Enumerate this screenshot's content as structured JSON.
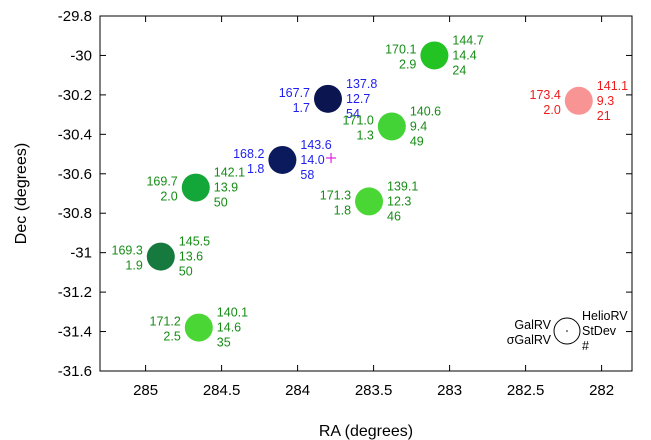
{
  "chart_data": {
    "type": "scatter",
    "xlabel": "RA (degrees)",
    "ylabel": "Dec (degrees)",
    "xlim": [
      285.3,
      281.8
    ],
    "ylim": [
      -31.6,
      -29.8
    ],
    "x_reversed": true,
    "xticks": [
      285,
      284.5,
      284,
      283.5,
      283,
      282.5,
      282
    ],
    "yticks": [
      -29.8,
      -30,
      -30.2,
      -30.4,
      -30.6,
      -30.8,
      -31,
      -31.2,
      -31.4,
      -31.6
    ],
    "grid": false,
    "points": [
      {
        "ra": 283.1,
        "dec": -30.0,
        "galrv": "170.1",
        "sigma": "2.9",
        "heliorv": "144.7",
        "stdev": "14.4",
        "n": "24",
        "color": "#22c322",
        "text_color": "#178c17"
      },
      {
        "ra": 282.15,
        "dec": -30.23,
        "galrv": "173.4",
        "sigma": "2.0",
        "heliorv": "141.1",
        "stdev": "9.3",
        "n": "21",
        "color": "#f89494",
        "text_color": "#ee1c1c"
      },
      {
        "ra": 283.8,
        "dec": -30.22,
        "galrv": "167.7",
        "sigma": "1.7",
        "heliorv": "137.8",
        "stdev": "12.7",
        "n": "54",
        "color": "#0b1650",
        "text_color": "#1f1ff0"
      },
      {
        "ra": 283.38,
        "dec": -30.36,
        "galrv": "171.0",
        "sigma": "1.3",
        "heliorv": "140.6",
        "stdev": "9.4",
        "n": "49",
        "color": "#44d337",
        "text_color": "#178c17"
      },
      {
        "ra": 284.1,
        "dec": -30.53,
        "galrv": "168.2",
        "sigma": "1.8",
        "heliorv": "143.6",
        "stdev": "14.0",
        "n": "58",
        "color": "#0b1a5c",
        "text_color": "#1f1ff0"
      },
      {
        "ra": 284.67,
        "dec": -30.67,
        "galrv": "169.7",
        "sigma": "2.0",
        "heliorv": "142.1",
        "stdev": "13.9",
        "n": "50",
        "color": "#13a73a",
        "text_color": "#178c17"
      },
      {
        "ra": 283.53,
        "dec": -30.74,
        "galrv": "171.3",
        "sigma": "1.8",
        "heliorv": "139.1",
        "stdev": "12.3",
        "n": "46",
        "color": "#4ad634",
        "text_color": "#178c17"
      },
      {
        "ra": 284.9,
        "dec": -31.02,
        "galrv": "169.3",
        "sigma": "1.9",
        "heliorv": "145.5",
        "stdev": "13.6",
        "n": "50",
        "color": "#167a3e",
        "text_color": "#178c17"
      },
      {
        "ra": 284.65,
        "dec": -31.38,
        "galrv": "171.2",
        "sigma": "2.5",
        "heliorv": "140.1",
        "stdev": "14.6",
        "n": "35",
        "color": "#4ad634",
        "text_color": "#178c17"
      }
    ],
    "center_marker": {
      "ra": 283.78,
      "dec": -30.52,
      "symbol": "+",
      "color": "#e020e0"
    },
    "legend": {
      "galrv": "GalRV",
      "sigma": "σGalRV",
      "heliorv": "HelioRV",
      "stdev": "StDev",
      "n": "#",
      "placement": "bottom-right"
    }
  }
}
